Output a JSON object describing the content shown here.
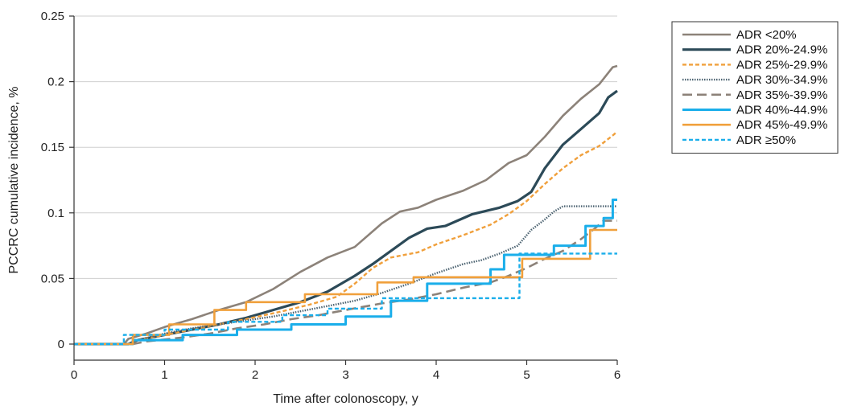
{
  "chart_data": {
    "type": "line",
    "title": "",
    "xlabel": "Time after colonoscopy, y",
    "ylabel": "PCCRC cumulative incidence, %",
    "xlim": [
      0,
      6
    ],
    "ylim": [
      0,
      0.25
    ],
    "x_ticks": [
      "0",
      "1",
      "2",
      "3",
      "4",
      "5",
      "6"
    ],
    "y_ticks": [
      "0",
      "0.05",
      "0.1",
      "0.15",
      "0.2",
      "0.25"
    ],
    "grid": "horizontal",
    "legend_position": "top-right",
    "series": [
      {
        "name": "ADR <20%",
        "color": "#8c8279",
        "style": "solid-thin",
        "points": [
          [
            0,
            0
          ],
          [
            0.55,
            0
          ],
          [
            0.6,
            0.004
          ],
          [
            0.8,
            0.008
          ],
          [
            1.0,
            0.013
          ],
          [
            1.3,
            0.019
          ],
          [
            1.6,
            0.026
          ],
          [
            1.9,
            0.032
          ],
          [
            2.2,
            0.042
          ],
          [
            2.5,
            0.055
          ],
          [
            2.8,
            0.066
          ],
          [
            3.1,
            0.074
          ],
          [
            3.4,
            0.092
          ],
          [
            3.6,
            0.101
          ],
          [
            3.8,
            0.104
          ],
          [
            4.0,
            0.11
          ],
          [
            4.3,
            0.117
          ],
          [
            4.55,
            0.125
          ],
          [
            4.8,
            0.138
          ],
          [
            5.0,
            0.144
          ],
          [
            5.2,
            0.158
          ],
          [
            5.4,
            0.174
          ],
          [
            5.6,
            0.187
          ],
          [
            5.8,
            0.198
          ],
          [
            5.95,
            0.211
          ],
          [
            6.0,
            0.212
          ]
        ]
      },
      {
        "name": "ADR 20%-24.9%",
        "color": "#2c4a58",
        "style": "solid-thick",
        "points": [
          [
            0,
            0
          ],
          [
            0.6,
            0
          ],
          [
            0.7,
            0.003
          ],
          [
            1.0,
            0.007
          ],
          [
            1.3,
            0.011
          ],
          [
            1.6,
            0.015
          ],
          [
            1.9,
            0.02
          ],
          [
            2.2,
            0.026
          ],
          [
            2.5,
            0.032
          ],
          [
            2.8,
            0.04
          ],
          [
            3.1,
            0.052
          ],
          [
            3.3,
            0.061
          ],
          [
            3.5,
            0.071
          ],
          [
            3.7,
            0.081
          ],
          [
            3.9,
            0.088
          ],
          [
            4.1,
            0.09
          ],
          [
            4.4,
            0.099
          ],
          [
            4.7,
            0.104
          ],
          [
            4.9,
            0.109
          ],
          [
            5.05,
            0.116
          ],
          [
            5.2,
            0.134
          ],
          [
            5.4,
            0.152
          ],
          [
            5.6,
            0.164
          ],
          [
            5.8,
            0.176
          ],
          [
            5.9,
            0.188
          ],
          [
            6.0,
            0.193
          ]
        ]
      },
      {
        "name": "ADR 25%-29.9%",
        "color": "#f0a03c",
        "style": "dashed",
        "points": [
          [
            0,
            0
          ],
          [
            0.6,
            0
          ],
          [
            0.7,
            0.003
          ],
          [
            1.0,
            0.007
          ],
          [
            1.3,
            0.011
          ],
          [
            1.6,
            0.015
          ],
          [
            1.9,
            0.019
          ],
          [
            2.3,
            0.025
          ],
          [
            2.6,
            0.03
          ],
          [
            2.9,
            0.036
          ],
          [
            3.1,
            0.046
          ],
          [
            3.3,
            0.058
          ],
          [
            3.5,
            0.066
          ],
          [
            3.8,
            0.07
          ],
          [
            4.0,
            0.076
          ],
          [
            4.3,
            0.083
          ],
          [
            4.6,
            0.091
          ],
          [
            4.8,
            0.099
          ],
          [
            5.0,
            0.109
          ],
          [
            5.2,
            0.122
          ],
          [
            5.4,
            0.134
          ],
          [
            5.6,
            0.144
          ],
          [
            5.8,
            0.151
          ],
          [
            5.95,
            0.159
          ],
          [
            6.0,
            0.162
          ]
        ]
      },
      {
        "name": "ADR 30%-34.9%",
        "color": "#4b6270",
        "style": "dotted-cross",
        "points": [
          [
            0,
            0
          ],
          [
            0.6,
            0
          ],
          [
            0.7,
            0.003
          ],
          [
            1.0,
            0.008
          ],
          [
            1.3,
            0.012
          ],
          [
            1.6,
            0.015
          ],
          [
            1.9,
            0.018
          ],
          [
            2.2,
            0.021
          ],
          [
            2.5,
            0.025
          ],
          [
            2.8,
            0.029
          ],
          [
            3.1,
            0.033
          ],
          [
            3.4,
            0.039
          ],
          [
            3.7,
            0.046
          ],
          [
            4.0,
            0.054
          ],
          [
            4.3,
            0.061
          ],
          [
            4.5,
            0.064
          ],
          [
            4.7,
            0.069
          ],
          [
            4.9,
            0.075
          ],
          [
            5.05,
            0.087
          ],
          [
            5.2,
            0.095
          ],
          [
            5.3,
            0.101
          ],
          [
            5.4,
            0.105
          ],
          [
            6.0,
            0.105
          ]
        ]
      },
      {
        "name": "ADR 35%-39.9%",
        "color": "#8c8279",
        "style": "long-dash",
        "points": [
          [
            0,
            0
          ],
          [
            0.65,
            0
          ],
          [
            0.8,
            0.002
          ],
          [
            1.2,
            0.005
          ],
          [
            1.5,
            0.008
          ],
          [
            1.8,
            0.012
          ],
          [
            2.1,
            0.015
          ],
          [
            2.4,
            0.019
          ],
          [
            2.7,
            0.022
          ],
          [
            3.0,
            0.026
          ],
          [
            3.4,
            0.031
          ],
          [
            3.7,
            0.034
          ],
          [
            4.0,
            0.038
          ],
          [
            4.3,
            0.043
          ],
          [
            4.6,
            0.047
          ],
          [
            4.8,
            0.052
          ],
          [
            5.0,
            0.058
          ],
          [
            5.2,
            0.065
          ],
          [
            5.4,
            0.071
          ],
          [
            5.6,
            0.08
          ],
          [
            5.75,
            0.088
          ],
          [
            5.85,
            0.094
          ],
          [
            6.0,
            0.094
          ]
        ]
      },
      {
        "name": "ADR 40%-44.9%",
        "color": "#1aaeea",
        "style": "step-thick",
        "points": [
          [
            0,
            0
          ],
          [
            0.65,
            0
          ],
          [
            0.65,
            0.003
          ],
          [
            1.2,
            0.003
          ],
          [
            1.2,
            0.007
          ],
          [
            1.8,
            0.007
          ],
          [
            1.8,
            0.011
          ],
          [
            2.4,
            0.011
          ],
          [
            2.4,
            0.015
          ],
          [
            3.0,
            0.015
          ],
          [
            3.0,
            0.021
          ],
          [
            3.5,
            0.021
          ],
          [
            3.5,
            0.033
          ],
          [
            3.9,
            0.033
          ],
          [
            3.9,
            0.046
          ],
          [
            4.6,
            0.046
          ],
          [
            4.6,
            0.057
          ],
          [
            4.75,
            0.057
          ],
          [
            4.75,
            0.068
          ],
          [
            5.3,
            0.068
          ],
          [
            5.3,
            0.075
          ],
          [
            5.65,
            0.075
          ],
          [
            5.65,
            0.09
          ],
          [
            5.85,
            0.09
          ],
          [
            5.85,
            0.096
          ],
          [
            5.95,
            0.096
          ],
          [
            5.95,
            0.11
          ],
          [
            6.0,
            0.11
          ]
        ]
      },
      {
        "name": "ADR 45%-49.9%",
        "color": "#f0a03c",
        "style": "step",
        "points": [
          [
            0,
            0
          ],
          [
            0.65,
            0
          ],
          [
            0.65,
            0.007
          ],
          [
            1.05,
            0.007
          ],
          [
            1.05,
            0.015
          ],
          [
            1.55,
            0.015
          ],
          [
            1.55,
            0.026
          ],
          [
            1.9,
            0.026
          ],
          [
            1.9,
            0.032
          ],
          [
            2.55,
            0.032
          ],
          [
            2.55,
            0.038
          ],
          [
            3.35,
            0.038
          ],
          [
            3.35,
            0.047
          ],
          [
            3.75,
            0.047
          ],
          [
            3.75,
            0.051
          ],
          [
            4.95,
            0.051
          ],
          [
            4.95,
            0.065
          ],
          [
            5.7,
            0.065
          ],
          [
            5.7,
            0.087
          ],
          [
            6.0,
            0.087
          ]
        ]
      },
      {
        "name": "ADR ≥50%",
        "color": "#1aaeea",
        "style": "step-dashed",
        "points": [
          [
            0,
            0
          ],
          [
            0.55,
            0
          ],
          [
            0.55,
            0.007
          ],
          [
            1.0,
            0.007
          ],
          [
            1.0,
            0.011
          ],
          [
            1.7,
            0.011
          ],
          [
            1.7,
            0.017
          ],
          [
            2.3,
            0.017
          ],
          [
            2.3,
            0.022
          ],
          [
            2.8,
            0.022
          ],
          [
            2.8,
            0.027
          ],
          [
            3.4,
            0.027
          ],
          [
            3.4,
            0.035
          ],
          [
            4.92,
            0.035
          ],
          [
            4.92,
            0.069
          ],
          [
            6.0,
            0.069
          ]
        ]
      }
    ]
  }
}
